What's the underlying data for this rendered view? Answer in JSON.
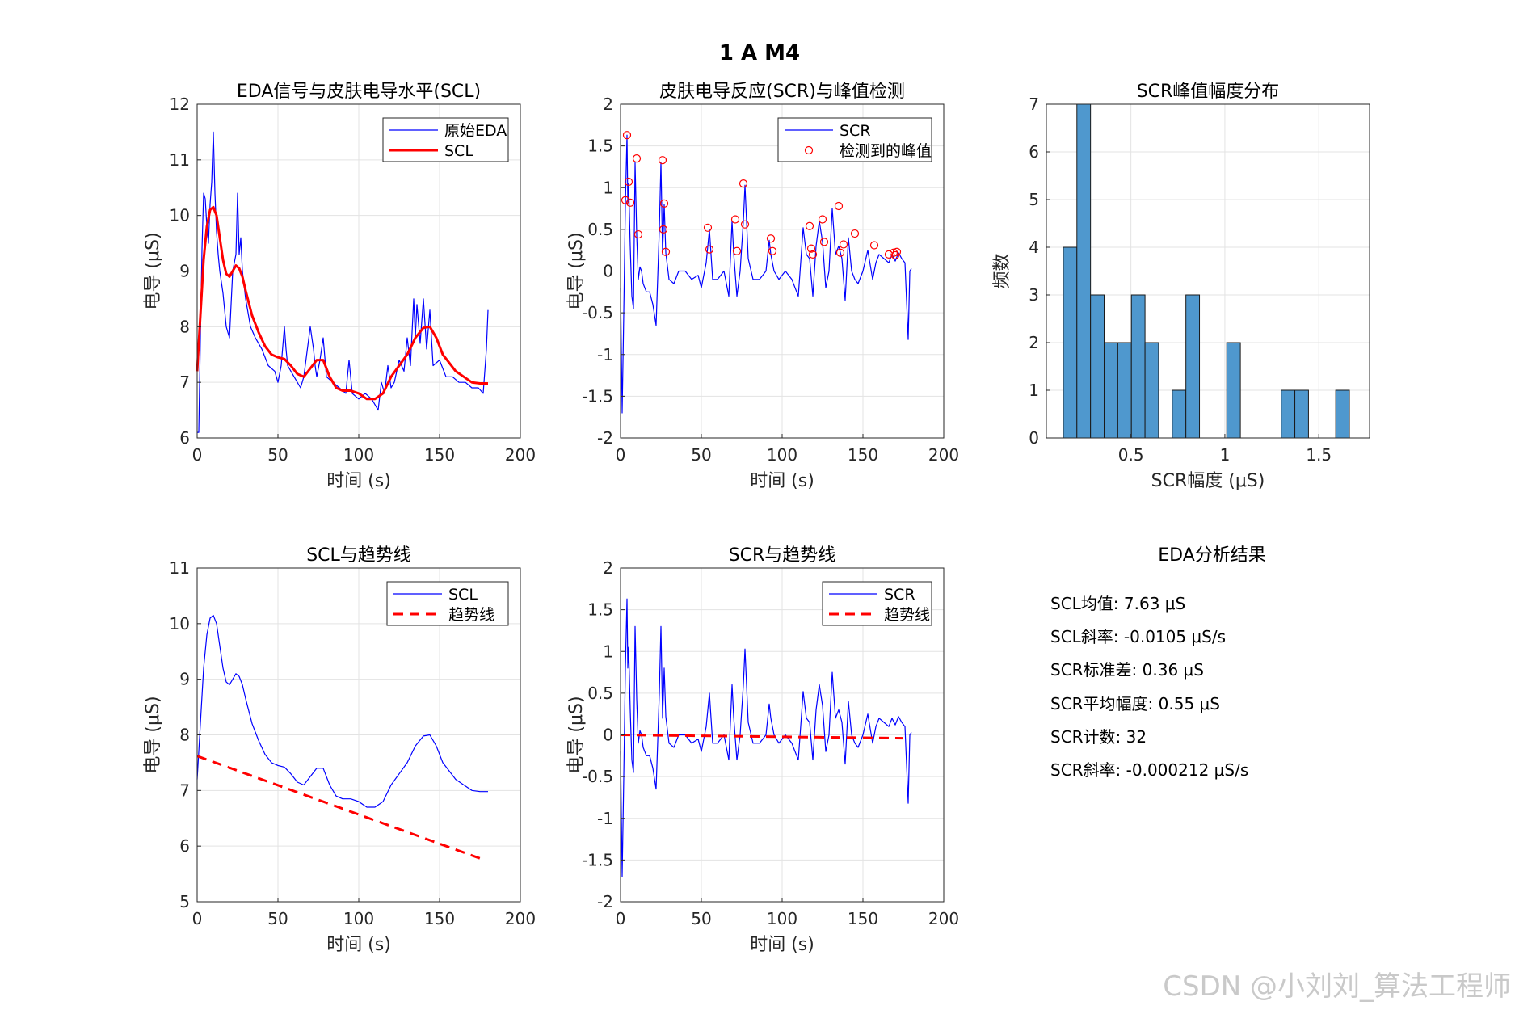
{
  "figure": {
    "suptitle": "1 A M4",
    "watermark": "CSDN @小刘刘_算法工程师",
    "colors": {
      "blue": "#0000ff",
      "red": "#ff0000",
      "bar": "#4f98ce"
    }
  },
  "chart_data": [
    {
      "id": "p1",
      "type": "line",
      "title": "EDA信号与皮肤电导水平(SCL)",
      "xlabel": "时间 (s)",
      "ylabel": "电导 (μS)",
      "xlim": [
        0,
        200
      ],
      "ylim": [
        6,
        12
      ],
      "xticks": [
        0,
        50,
        100,
        150,
        200
      ],
      "yticks": [
        6,
        7,
        8,
        9,
        10,
        11,
        12
      ],
      "grid": true,
      "legend": "top-right",
      "series": [
        {
          "name": "原始EDA",
          "color": "#0000ff",
          "x": [
            0,
            1,
            2,
            3,
            4,
            5,
            6,
            7,
            8,
            9,
            10,
            11,
            12,
            13,
            14,
            16,
            18,
            20,
            22,
            24,
            25,
            26,
            27,
            28,
            30,
            33,
            36,
            40,
            44,
            48,
            50,
            52,
            54,
            55,
            56,
            60,
            64,
            66,
            70,
            72,
            73,
            74,
            76,
            78,
            80,
            84,
            88,
            92,
            94,
            96,
            100,
            104,
            108,
            112,
            114,
            116,
            118,
            120,
            122,
            125,
            128,
            130,
            132,
            134,
            135,
            136,
            138,
            140,
            142,
            144,
            146,
            150,
            154,
            158,
            162,
            166,
            170,
            174,
            177,
            178,
            179,
            180
          ],
          "y": [
            6.1,
            6.1,
            7.8,
            9.4,
            10.4,
            10.3,
            9.8,
            9.5,
            10.2,
            10.6,
            11.5,
            10.4,
            9.7,
            9.3,
            9.0,
            8.6,
            8.0,
            7.8,
            9.0,
            9.3,
            10.4,
            9.3,
            9.6,
            9.0,
            8.5,
            8.0,
            7.8,
            7.6,
            7.3,
            7.2,
            7.0,
            7.3,
            8.0,
            7.6,
            7.3,
            7.1,
            6.9,
            7.1,
            8.0,
            7.6,
            7.3,
            7.1,
            7.4,
            7.8,
            7.1,
            7.0,
            6.9,
            6.8,
            7.4,
            6.8,
            6.7,
            6.8,
            6.7,
            6.5,
            7.0,
            6.8,
            7.3,
            6.9,
            7.0,
            7.4,
            7.2,
            7.8,
            7.3,
            8.5,
            7.8,
            8.4,
            7.7,
            8.5,
            7.6,
            8.3,
            7.3,
            7.4,
            7.1,
            7.1,
            7.0,
            7.0,
            6.9,
            6.9,
            6.8,
            7.2,
            7.6,
            8.3
          ],
          "width": 1.2
        },
        {
          "name": "SCL",
          "color": "#ff0000",
          "x": [
            0,
            2,
            4,
            6,
            8,
            10,
            12,
            14,
            16,
            18,
            20,
            22,
            24,
            26,
            28,
            30,
            34,
            38,
            42,
            46,
            50,
            54,
            58,
            62,
            66,
            70,
            74,
            78,
            82,
            86,
            90,
            95,
            100,
            105,
            110,
            115,
            120,
            125,
            130,
            135,
            140,
            144,
            148,
            152,
            156,
            160,
            165,
            170,
            175,
            180
          ],
          "y": [
            7.2,
            8.2,
            9.2,
            9.8,
            10.1,
            10.15,
            10.0,
            9.6,
            9.2,
            8.95,
            8.9,
            9.0,
            9.1,
            9.05,
            8.9,
            8.65,
            8.2,
            7.9,
            7.65,
            7.5,
            7.45,
            7.42,
            7.3,
            7.15,
            7.1,
            7.25,
            7.4,
            7.4,
            7.1,
            6.9,
            6.85,
            6.85,
            6.8,
            6.7,
            6.7,
            6.8,
            7.1,
            7.3,
            7.5,
            7.8,
            7.98,
            8.0,
            7.8,
            7.5,
            7.35,
            7.2,
            7.1,
            7.0,
            6.98,
            6.98
          ],
          "width": 3
        }
      ]
    },
    {
      "id": "p2",
      "type": "line",
      "title": "皮肤电导反应(SCR)与峰值检测",
      "xlabel": "时间 (s)",
      "ylabel": "电导 (μS)",
      "xlim": [
        0,
        200
      ],
      "ylim": [
        -2,
        2
      ],
      "xticks": [
        0,
        50,
        100,
        150,
        200
      ],
      "yticks": [
        -2,
        -1.5,
        -1,
        -0.5,
        0,
        0.5,
        1,
        1.5,
        2
      ],
      "grid": true,
      "legend": "top-right",
      "series": [
        {
          "name": "SCR",
          "color": "#0000ff",
          "x": [
            0,
            1,
            2,
            3,
            4,
            4.5,
            5,
            6,
            7,
            8,
            9,
            10,
            11,
            12,
            13,
            14,
            16,
            18,
            20,
            22,
            24,
            25,
            26,
            27,
            28,
            30,
            33,
            36,
            40,
            44,
            48,
            50,
            53,
            55,
            57,
            60,
            64,
            67,
            69,
            70,
            72,
            74,
            76,
            77,
            79,
            82,
            86,
            90,
            92,
            93,
            95,
            98,
            102,
            106,
            110,
            113,
            115,
            117,
            119,
            121,
            123,
            125,
            127,
            129,
            131,
            133,
            135,
            137,
            139,
            141,
            143,
            145,
            147,
            150,
            153,
            156,
            158,
            160,
            163,
            166,
            168,
            170,
            172,
            174,
            176,
            178,
            179,
            180
          ],
          "y": [
            -0.2,
            -1.7,
            -0.5,
            0.8,
            1.63,
            0.8,
            1.05,
            0.3,
            -0.3,
            -0.45,
            1.3,
            0.43,
            -0.1,
            0.05,
            0.0,
            -0.15,
            -0.25,
            -0.25,
            -0.4,
            -0.65,
            0.5,
            1.3,
            0.2,
            0.8,
            0.22,
            -0.1,
            -0.15,
            0.0,
            0.0,
            -0.1,
            -0.05,
            -0.2,
            0.1,
            0.5,
            -0.1,
            -0.1,
            0.0,
            -0.3,
            0.6,
            0.22,
            -0.3,
            0.0,
            0.6,
            1.03,
            0.15,
            -0.1,
            -0.1,
            0.0,
            0.37,
            0.2,
            0.0,
            -0.1,
            0.0,
            -0.1,
            -0.3,
            0.52,
            0.2,
            0.15,
            -0.3,
            0.3,
            0.6,
            0.35,
            -0.2,
            0.0,
            0.75,
            0.2,
            0.3,
            0.15,
            -0.35,
            0.4,
            0.0,
            -0.1,
            -0.15,
            0.0,
            0.25,
            -0.1,
            0.1,
            0.2,
            0.15,
            0.1,
            0.2,
            0.12,
            0.22,
            0.15,
            0.1,
            -0.82,
            0.0,
            0.03
          ],
          "width": 1.2
        },
        {
          "name": "检测到的峰值",
          "color": "#ff0000",
          "marker": "circle",
          "x": [
            3,
            4,
            5,
            6,
            10,
            11,
            26,
            26.5,
            27,
            28,
            54,
            55,
            71,
            72,
            76,
            77,
            93,
            94,
            117,
            118,
            119,
            125,
            126,
            135,
            136,
            138,
            145,
            157,
            166,
            169,
            170,
            171
          ],
          "y": [
            0.85,
            1.63,
            1.07,
            0.82,
            1.35,
            0.44,
            1.33,
            0.5,
            0.81,
            0.23,
            0.52,
            0.26,
            0.62,
            0.24,
            1.05,
            0.56,
            0.39,
            0.24,
            0.54,
            0.27,
            0.2,
            0.62,
            0.35,
            0.78,
            0.22,
            0.32,
            0.45,
            0.31,
            0.2,
            0.22,
            0.19,
            0.23
          ]
        }
      ]
    },
    {
      "id": "p3",
      "type": "bar",
      "title": "SCR峰值幅度分布",
      "xlabel": "SCR幅度 (μS)",
      "ylabel": "频数",
      "xlim": [
        0.05,
        1.77
      ],
      "ylim": [
        0,
        7
      ],
      "xticks": [
        0.5,
        1,
        1.5
      ],
      "xticklabels": [
        "0.5",
        "1",
        "1.5"
      ],
      "yticks": [
        0,
        1,
        2,
        3,
        4,
        5,
        6,
        7
      ],
      "grid": true,
      "bin_edges": [
        0.14,
        0.2125,
        0.285,
        0.3575,
        0.43,
        0.5025,
        0.575,
        0.6475,
        0.72,
        0.7925,
        0.865,
        0.9375,
        1.01,
        1.0825,
        1.155,
        1.2275,
        1.3,
        1.3725,
        1.445,
        1.5175,
        1.59,
        1.6625
      ],
      "values": [
        4,
        7,
        3,
        2,
        2,
        3,
        2,
        0,
        1,
        3,
        0,
        0,
        2,
        0,
        0,
        0,
        1,
        1,
        0,
        0,
        1
      ],
      "color": "#4f98ce"
    },
    {
      "id": "p4",
      "type": "line",
      "title": "SCL与趋势线",
      "xlabel": "时间 (s)",
      "ylabel": "电导 (μS)",
      "xlim": [
        0,
        200
      ],
      "ylim": [
        5,
        11
      ],
      "xticks": [
        0,
        50,
        100,
        150,
        200
      ],
      "yticks": [
        5,
        6,
        7,
        8,
        9,
        10,
        11
      ],
      "grid": true,
      "legend": "top-right",
      "series": [
        {
          "name": "SCL",
          "color": "#0000ff",
          "x": [
            0,
            2,
            4,
            6,
            8,
            10,
            12,
            14,
            16,
            18,
            20,
            22,
            24,
            26,
            28,
            30,
            34,
            38,
            42,
            46,
            50,
            54,
            58,
            62,
            66,
            70,
            74,
            78,
            82,
            86,
            90,
            95,
            100,
            105,
            110,
            115,
            120,
            125,
            130,
            135,
            140,
            144,
            148,
            152,
            156,
            160,
            165,
            170,
            175,
            180
          ],
          "y": [
            7.2,
            8.2,
            9.2,
            9.8,
            10.1,
            10.15,
            10.0,
            9.6,
            9.2,
            8.95,
            8.9,
            9.0,
            9.1,
            9.05,
            8.9,
            8.65,
            8.2,
            7.9,
            7.65,
            7.5,
            7.45,
            7.42,
            7.3,
            7.15,
            7.1,
            7.25,
            7.4,
            7.4,
            7.1,
            6.9,
            6.85,
            6.85,
            6.8,
            6.7,
            6.7,
            6.8,
            7.1,
            7.3,
            7.5,
            7.8,
            7.98,
            8.0,
            7.8,
            7.5,
            7.35,
            7.2,
            7.1,
            7.0,
            6.98,
            6.98
          ],
          "width": 1.2
        },
        {
          "name": "趋势线",
          "color": "#ff0000",
          "dashed": true,
          "x": [
            0,
            175
          ],
          "y": [
            7.62,
            5.78
          ],
          "width": 3
        }
      ]
    },
    {
      "id": "p5",
      "type": "line",
      "title": "SCR与趋势线",
      "xlabel": "时间 (s)",
      "ylabel": "电导 (μS)",
      "xlim": [
        0,
        200
      ],
      "ylim": [
        -2,
        2
      ],
      "xticks": [
        0,
        50,
        100,
        150,
        200
      ],
      "yticks": [
        -2,
        -1.5,
        -1,
        -0.5,
        0,
        0.5,
        1,
        1.5,
        2
      ],
      "grid": true,
      "legend": "top-right",
      "series": [
        {
          "name": "SCR",
          "color": "#0000ff",
          "x": [
            0,
            1,
            2,
            3,
            4,
            4.5,
            5,
            6,
            7,
            8,
            9,
            10,
            11,
            12,
            13,
            14,
            16,
            18,
            20,
            22,
            24,
            25,
            26,
            27,
            28,
            30,
            33,
            36,
            40,
            44,
            48,
            50,
            53,
            55,
            57,
            60,
            64,
            67,
            69,
            70,
            72,
            74,
            76,
            77,
            79,
            82,
            86,
            90,
            92,
            93,
            95,
            98,
            102,
            106,
            110,
            113,
            115,
            117,
            119,
            121,
            123,
            125,
            127,
            129,
            131,
            133,
            135,
            137,
            139,
            141,
            143,
            145,
            147,
            150,
            153,
            156,
            158,
            160,
            163,
            166,
            168,
            170,
            172,
            174,
            176,
            178,
            179,
            180
          ],
          "y": [
            -0.2,
            -1.7,
            -0.5,
            0.8,
            1.63,
            0.8,
            1.05,
            0.3,
            -0.3,
            -0.45,
            1.3,
            0.43,
            -0.1,
            0.05,
            0.0,
            -0.15,
            -0.25,
            -0.25,
            -0.4,
            -0.65,
            0.5,
            1.3,
            0.2,
            0.8,
            0.22,
            -0.1,
            -0.15,
            0.0,
            0.0,
            -0.1,
            -0.05,
            -0.2,
            0.1,
            0.5,
            -0.1,
            -0.1,
            0.0,
            -0.3,
            0.6,
            0.22,
            -0.3,
            0.0,
            0.6,
            1.03,
            0.15,
            -0.1,
            -0.1,
            0.0,
            0.37,
            0.2,
            0.0,
            -0.1,
            0.0,
            -0.1,
            -0.3,
            0.52,
            0.2,
            0.15,
            -0.3,
            0.3,
            0.6,
            0.35,
            -0.2,
            0.0,
            0.75,
            0.2,
            0.3,
            0.15,
            -0.35,
            0.4,
            0.0,
            -0.1,
            -0.15,
            0.0,
            0.25,
            -0.1,
            0.1,
            0.2,
            0.15,
            0.1,
            0.2,
            0.12,
            0.22,
            0.15,
            0.1,
            -0.82,
            0.0,
            0.03
          ],
          "width": 1.2
        },
        {
          "name": "趋势线",
          "color": "#ff0000",
          "dashed": true,
          "x": [
            0,
            175
          ],
          "y": [
            0.0,
            -0.04
          ],
          "width": 3
        }
      ]
    }
  ],
  "results": {
    "title": "EDA分析结果",
    "lines": [
      "SCL均值: 7.63 μS",
      "SCL斜率: -0.0105 μS/s",
      "SCR标准差: 0.36 μS",
      "SCR平均幅度: 0.55 μS",
      "SCR计数: 32",
      "SCR斜率: -0.000212 μS/s"
    ]
  }
}
